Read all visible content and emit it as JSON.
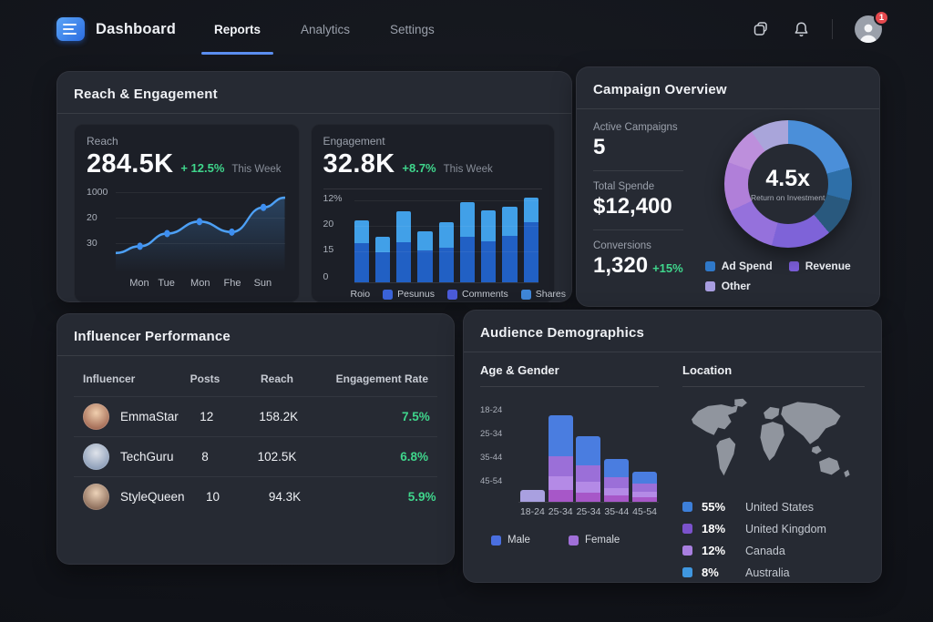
{
  "nav": {
    "brand": "Dashboard",
    "tabs": [
      {
        "label": "Reports",
        "active": true
      },
      {
        "label": "Analytics",
        "active": false
      },
      {
        "label": "Settings",
        "active": false
      }
    ],
    "notification_badge": "1"
  },
  "reach_engagement": {
    "title": "Reach & Engagement",
    "reach": {
      "label": "Reach",
      "value": "284.5K",
      "delta": "+ 12.5%",
      "period": "This Week",
      "chart_data": {
        "type": "line",
        "x_labels": [
          "Mon",
          "Tue",
          "Mon",
          "Fhe",
          "Sun"
        ],
        "y_tick_labels": [
          "1000",
          "20",
          "30"
        ],
        "values": [
          21,
          30,
          47,
          63,
          49,
          82,
          95
        ],
        "dot_indices": [
          1,
          2,
          3,
          4,
          5
        ],
        "line_color": "#4da0f5",
        "ylim": [
          0,
          100
        ],
        "grid": true
      }
    },
    "engagement": {
      "label": "Engagement",
      "value": "32.8K",
      "delta": "+8.7%",
      "period": "This Week",
      "chart_data": {
        "type": "stacked-bar",
        "y_tick_labels": [
          "12%",
          "20",
          "15",
          "0"
        ],
        "series": [
          {
            "name": "bottom",
            "color": "#2160c4",
            "values": [
              43,
              33,
              44,
              35,
              38,
              50,
              45,
              51,
              66
            ]
          },
          {
            "name": "top",
            "color": "#41a0e8",
            "values": [
              25,
              17,
              34,
              21,
              28,
              38,
              34,
              32,
              27
            ]
          }
        ],
        "max": 95,
        "legend": [
          {
            "label": "Roio",
            "swatch": null
          },
          {
            "label": "Pesunus",
            "swatch": "#3a63d8"
          },
          {
            "label": "Comments",
            "swatch": "#4a5ad8"
          },
          {
            "label": "Shares",
            "swatch": "#3f86d8"
          }
        ]
      }
    }
  },
  "campaign_overview": {
    "title": "Campaign Overview",
    "stats": [
      {
        "label": "Active Campaigns",
        "value": "5",
        "delta": ""
      },
      {
        "label": "Total Spende",
        "value": "$12,400",
        "delta": ""
      },
      {
        "label": "Conversions",
        "value": "1,320",
        "delta": "+15%"
      }
    ],
    "donut": {
      "center_value": "4.5x",
      "center_label": "Return on Investment",
      "chart_data": {
        "type": "pie",
        "segments": [
          {
            "color": "#4b8fd9",
            "deg": 75
          },
          {
            "color": "#2e6fa8",
            "deg": 30
          },
          {
            "color": "#29597e",
            "deg": 35
          },
          {
            "color": "#7e63d8",
            "deg": 55
          },
          {
            "color": "#9571dc",
            "deg": 50
          },
          {
            "color": "#b07fd9",
            "deg": 45
          },
          {
            "color": "#bd8fdc",
            "deg": 35
          },
          {
            "color": "#a9a5da",
            "deg": 35
          }
        ]
      },
      "legend": [
        {
          "label": "Ad Spend",
          "color": "#2f78c8"
        },
        {
          "label": "Revenue",
          "color": "#7b5ed8"
        },
        {
          "label": "Other",
          "color": "#a89de0"
        }
      ]
    }
  },
  "influencer_performance": {
    "title": "Influencer Performance",
    "columns": [
      "Influencer",
      "Posts",
      "Reach",
      "Engagement Rate"
    ],
    "rows": [
      {
        "name": "EmmaStar",
        "posts": "12",
        "reach": "158.2K",
        "rate": "7.5%",
        "avatar_colors": [
          "#f0cfae",
          "#8a4a38"
        ]
      },
      {
        "name": "TechGuru",
        "posts": "8",
        "reach": "102.5K",
        "rate": "6.8%",
        "avatar_colors": [
          "#dfe3ea",
          "#7187a8"
        ]
      },
      {
        "name": "StyleQueen",
        "posts": "10",
        "reach": "94.3K",
        "rate": "5.9%",
        "avatar_colors": [
          "#ecd2b8",
          "#6b4a3a"
        ]
      }
    ]
  },
  "audience_demographics": {
    "title": "Audience Demographics",
    "age_gender": {
      "title": "Age & Gender",
      "chart_data": {
        "type": "stacked-bar",
        "x_labels": [
          "18-24",
          "25-34",
          "25-34",
          "35-44",
          "45-54"
        ],
        "y_tick_labels": [
          "18-24",
          "25-34",
          "35-44",
          "45-54"
        ],
        "bars": [
          {
            "segments": [
              {
                "color": "#a9a0e0",
                "h": 13
              }
            ]
          },
          {
            "segments": [
              {
                "color": "#4a7de0",
                "h": 45
              },
              {
                "color": "#9b6fd8",
                "h": 22
              },
              {
                "color": "#b48ae6",
                "h": 15
              },
              {
                "color": "#a757c8",
                "h": 13
              }
            ]
          },
          {
            "segments": [
              {
                "color": "#4a7de0",
                "h": 32
              },
              {
                "color": "#9b6fd8",
                "h": 18
              },
              {
                "color": "#b48ae6",
                "h": 12
              },
              {
                "color": "#a757c8",
                "h": 10
              }
            ]
          },
          {
            "segments": [
              {
                "color": "#4a7de0",
                "h": 20
              },
              {
                "color": "#9b6fd8",
                "h": 12
              },
              {
                "color": "#b48ae6",
                "h": 8
              },
              {
                "color": "#a757c8",
                "h": 7
              }
            ]
          },
          {
            "segments": [
              {
                "color": "#4a7de0",
                "h": 13
              },
              {
                "color": "#9b6fd8",
                "h": 9
              },
              {
                "color": "#b48ae6",
                "h": 6
              },
              {
                "color": "#a757c8",
                "h": 5
              }
            ]
          }
        ]
      },
      "legend": [
        {
          "label": "Male",
          "color": "#4a6fe0"
        },
        {
          "label": "Female",
          "color": "#a06fd8"
        }
      ]
    },
    "location": {
      "title": "Location",
      "chart_data": {
        "type": "table",
        "rows": [
          {
            "pct": "55%",
            "label": "United States",
            "color": "#3d7fd9"
          },
          {
            "pct": "18%",
            "label": "United Kingdom",
            "color": "#7b52cc"
          },
          {
            "pct": "12%",
            "label": "Canada",
            "color": "#a87fe0"
          },
          {
            "pct": "8%",
            "label": "Australia",
            "color": "#3f97e0"
          }
        ]
      }
    }
  },
  "colors": {
    "accent_blue": "#5b8ef0",
    "positive_green": "#3fd68c",
    "card_bg": "#262a33",
    "panel_bg": "#1c1f27",
    "page_bg": "#12141a",
    "badge_red": "#e5484d"
  }
}
